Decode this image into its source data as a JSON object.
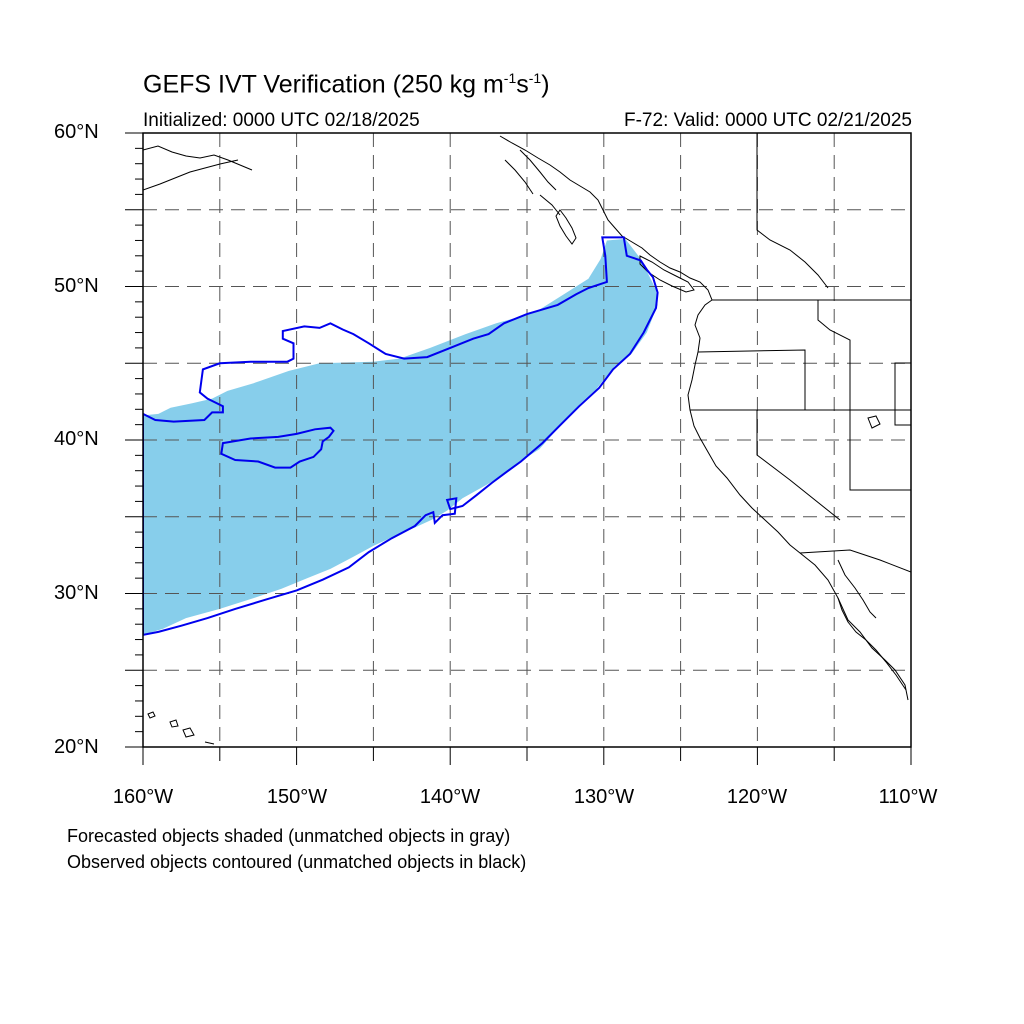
{
  "header": {
    "title_main": "GEFS IVT Verification (250 kg m",
    "title_exp1": "-1",
    "title_mid": "s",
    "title_exp2": "-1",
    "title_end": ")",
    "initialized": "Initialized: 0000 UTC 02/18/2025",
    "valid": "F-72: Valid: 0000 UTC 02/21/2025"
  },
  "map": {
    "lon_range": [
      -160,
      -110
    ],
    "lat_range": [
      20,
      60
    ],
    "lat_labels": [
      "60°N",
      "50°N",
      "40°N",
      "30°N",
      "20°N"
    ],
    "lon_labels": [
      "160°W",
      "150°W",
      "140°W",
      "130°W",
      "120°W",
      "110°W"
    ],
    "colors": {
      "forecast_fill": "#87ceeb",
      "observed_contour": "#0000ee",
      "grid": "#555555",
      "coast": "#000000"
    },
    "forecast_polygon": [
      [
        -160,
        41.6
      ],
      [
        -159,
        41.7
      ],
      [
        -158.2,
        42.1
      ],
      [
        -156.8,
        42.4
      ],
      [
        -155.5,
        42.7
      ],
      [
        -154.5,
        43.2
      ],
      [
        -152.8,
        43.7
      ],
      [
        -150.5,
        44.5
      ],
      [
        -148.5,
        45.0
      ],
      [
        -145,
        45.1
      ],
      [
        -143.3,
        45.3
      ],
      [
        -141.3,
        46.0
      ],
      [
        -139,
        46.9
      ],
      [
        -137,
        47.6
      ],
      [
        -134.5,
        48.3
      ],
      [
        -132.6,
        49.5
      ],
      [
        -131,
        50.5
      ],
      [
        -130.2,
        51.8
      ],
      [
        -129.8,
        53.0
      ],
      [
        -128.6,
        53.1
      ],
      [
        -127.6,
        51.8
      ],
      [
        -126.6,
        49.8
      ],
      [
        -126.5,
        48.8
      ],
      [
        -127.2,
        47.0
      ],
      [
        -128.2,
        45.6
      ],
      [
        -129.3,
        44.8
      ],
      [
        -130.5,
        43.3
      ],
      [
        -131.5,
        42.4
      ],
      [
        -132.6,
        41.2
      ],
      [
        -134.2,
        39.4
      ],
      [
        -135.6,
        38.5
      ],
      [
        -136.6,
        37.7
      ],
      [
        -137.6,
        37.1
      ],
      [
        -139.2,
        36.2
      ],
      [
        -140.2,
        35.4
      ],
      [
        -141.2,
        34.8
      ],
      [
        -142.3,
        34.3
      ],
      [
        -143.5,
        33.8
      ],
      [
        -145,
        33.1
      ],
      [
        -146.3,
        32.4
      ],
      [
        -147.8,
        31.6
      ],
      [
        -149.3,
        31.0
      ],
      [
        -151,
        30.3
      ],
      [
        -152.8,
        29.7
      ],
      [
        -155,
        29.0
      ],
      [
        -157.2,
        28.4
      ],
      [
        -158.7,
        27.7
      ],
      [
        -160,
        27.3
      ]
    ],
    "observed_contours": [
      {
        "name": "main",
        "points": [
          [
            -160,
            41.7
          ],
          [
            -159.2,
            41.3
          ],
          [
            -158,
            41.2
          ],
          [
            -156,
            41.3
          ],
          [
            -155.5,
            41.8
          ],
          [
            -154.8,
            41.8
          ],
          [
            -154.8,
            42.2
          ],
          [
            -155.8,
            42.7
          ],
          [
            -156.3,
            43.1
          ],
          [
            -156.1,
            44.6
          ],
          [
            -155,
            45.0
          ],
          [
            -153,
            45.1
          ],
          [
            -150.6,
            45.1
          ],
          [
            -150.2,
            45.3
          ],
          [
            -150.2,
            46.3
          ],
          [
            -150.9,
            46.6
          ],
          [
            -150.9,
            47.1
          ],
          [
            -149.5,
            47.4
          ],
          [
            -148.5,
            47.3
          ],
          [
            -147.8,
            47.6
          ],
          [
            -147,
            47.2
          ],
          [
            -146.3,
            46.9
          ],
          [
            -145.3,
            46.3
          ],
          [
            -144.2,
            45.6
          ],
          [
            -143,
            45.3
          ],
          [
            -141.5,
            45.4
          ],
          [
            -140,
            46.0
          ],
          [
            -138.5,
            46.6
          ],
          [
            -137.5,
            46.9
          ],
          [
            -136.5,
            47.6
          ],
          [
            -135,
            48.2
          ],
          [
            -133,
            48.8
          ],
          [
            -131.8,
            49.5
          ],
          [
            -131,
            49.9
          ],
          [
            -129.8,
            50.3
          ],
          [
            -129.9,
            52.0
          ],
          [
            -130.1,
            53.2
          ],
          [
            -128.7,
            53.2
          ],
          [
            -128.5,
            52.0
          ],
          [
            -127.6,
            51.7
          ],
          [
            -127.2,
            51.1
          ],
          [
            -126.8,
            50.6
          ],
          [
            -126.5,
            49.6
          ],
          [
            -126.6,
            48.6
          ],
          [
            -127.4,
            47.0
          ],
          [
            -128.3,
            45.6
          ],
          [
            -129.4,
            44.6
          ],
          [
            -130.3,
            43.4
          ],
          [
            -131.6,
            42.2
          ],
          [
            -132.8,
            41.0
          ],
          [
            -134,
            39.8
          ],
          [
            -135.4,
            38.6
          ],
          [
            -136.5,
            37.8
          ],
          [
            -137.3,
            37.2
          ],
          [
            -138.3,
            36.4
          ],
          [
            -139.2,
            35.7
          ],
          [
            -140,
            35.5
          ],
          [
            -140.2,
            36.1
          ],
          [
            -139.6,
            36.2
          ],
          [
            -139.7,
            35.2
          ],
          [
            -140.5,
            35.1
          ],
          [
            -141,
            34.6
          ],
          [
            -141.1,
            35.3
          ],
          [
            -141.6,
            35.1
          ],
          [
            -142.3,
            34.4
          ],
          [
            -143.8,
            33.6
          ],
          [
            -145.3,
            32.7
          ],
          [
            -146.6,
            31.7
          ],
          [
            -148.3,
            30.9
          ],
          [
            -150,
            30.2
          ],
          [
            -152,
            29.6
          ],
          [
            -154,
            29.0
          ],
          [
            -155.8,
            28.4
          ],
          [
            -157.5,
            27.9
          ],
          [
            -159,
            27.5
          ],
          [
            -160,
            27.3
          ]
        ]
      },
      {
        "name": "inner",
        "points": [
          [
            -154.8,
            39.8
          ],
          [
            -153,
            40.1
          ],
          [
            -151.2,
            40.2
          ],
          [
            -150,
            40.4
          ],
          [
            -148.8,
            40.7
          ],
          [
            -147.8,
            40.8
          ],
          [
            -147.6,
            40.6
          ],
          [
            -147.9,
            40.2
          ],
          [
            -148.3,
            39.9
          ],
          [
            -148.4,
            39.4
          ],
          [
            -148.9,
            38.9
          ],
          [
            -149.8,
            38.6
          ],
          [
            -150.4,
            38.2
          ],
          [
            -151.4,
            38.2
          ],
          [
            -152.5,
            38.6
          ],
          [
            -154,
            38.7
          ],
          [
            -154.9,
            39.1
          ]
        ]
      }
    ],
    "notes": [
      "Forecasted objects shaded (unmatched objects in gray)",
      "Observed objects contoured (unmatched objects in black)"
    ]
  }
}
